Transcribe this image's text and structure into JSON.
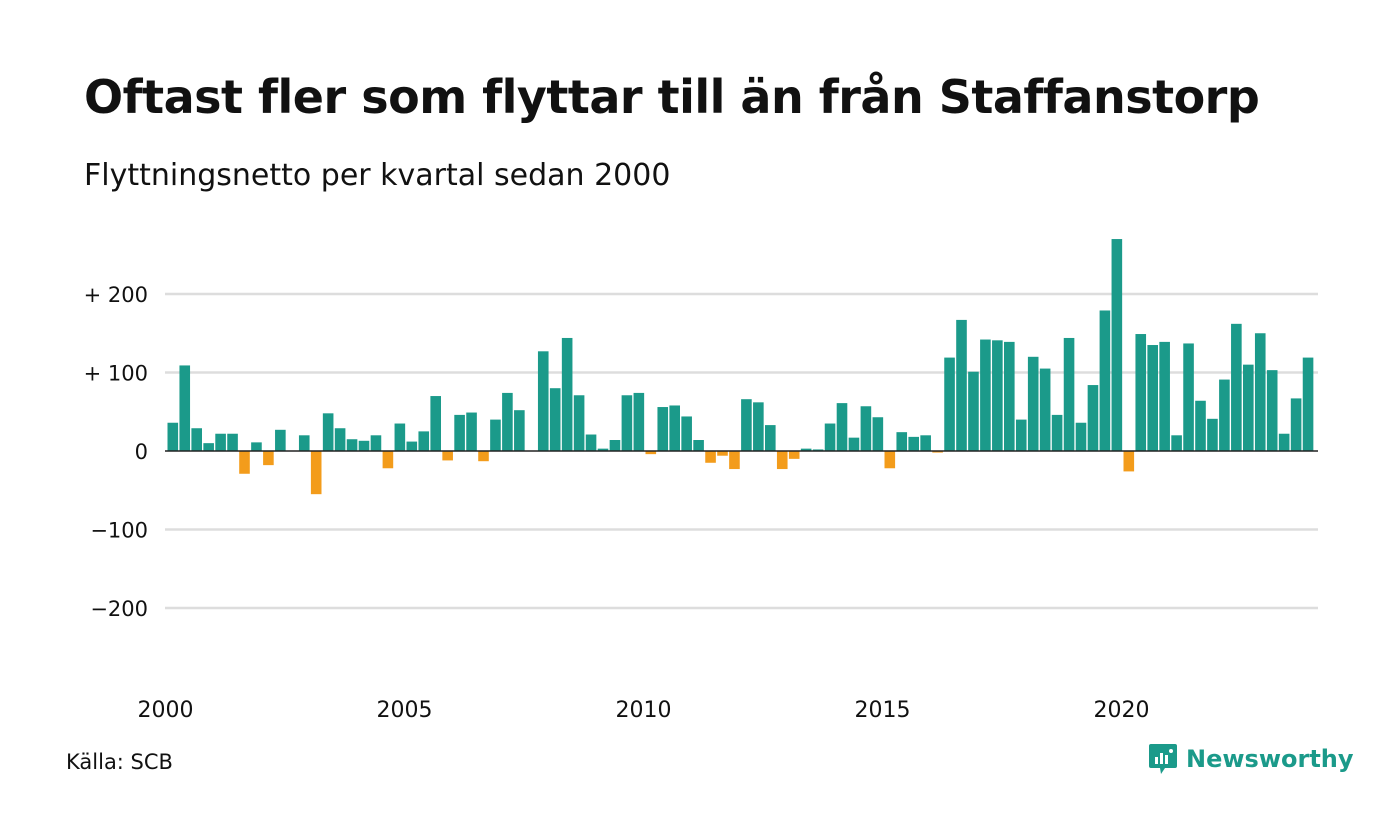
{
  "title": "Oftast fler som flyttar till än från Staffanstorp",
  "subtitle": "Flyttningsnetto per kvartal sedan 2000",
  "source": "Källa: SCB",
  "brand": {
    "name": "Newsworthy",
    "icon": "newsworthy-logo-icon",
    "color": "#1b9a8a"
  },
  "chart_data": {
    "type": "bar",
    "title": "Oftast fler som flyttar till än från Staffanstorp",
    "subtitle": "Flyttningsnetto per kvartal sedan 2000",
    "x_start": "2000 Q1",
    "x_ticks": [
      "2000",
      "2005",
      "2010",
      "2015",
      "2020"
    ],
    "y_ticks": [
      {
        "value": 200,
        "label": "+ 200"
      },
      {
        "value": 100,
        "label": "+ 100"
      },
      {
        "value": 0,
        "label": "0"
      },
      {
        "value": -100,
        "label": "−100"
      },
      {
        "value": -200,
        "label": "−200"
      }
    ],
    "ylim": [
      -250,
      275
    ],
    "grid": true,
    "colors": {
      "positive": "#1b9a8a",
      "negative": "#f39c1b",
      "grid": "#dddddd",
      "zero_line": "#222222"
    },
    "values": [
      36,
      109,
      29,
      10,
      22,
      22,
      -29,
      11,
      -18,
      27,
      0,
      20,
      -55,
      48,
      29,
      15,
      13,
      20,
      -22,
      35,
      12,
      25,
      70,
      -12,
      46,
      49,
      -13,
      40,
      74,
      52,
      0,
      127,
      80,
      144,
      71,
      21,
      3,
      14,
      71,
      74,
      -4,
      56,
      58,
      44,
      14,
      -15,
      -6,
      -23,
      66,
      62,
      33,
      -23,
      -10,
      3,
      2,
      35,
      61,
      17,
      57,
      43,
      -22,
      24,
      18,
      20,
      -2,
      119,
      167,
      101,
      142,
      141,
      139,
      40,
      120,
      105,
      46,
      144,
      36,
      84,
      179,
      270,
      -26,
      149,
      135,
      139,
      20,
      137,
      64,
      41,
      91,
      162,
      110,
      150,
      103,
      22,
      67,
      119
    ]
  }
}
